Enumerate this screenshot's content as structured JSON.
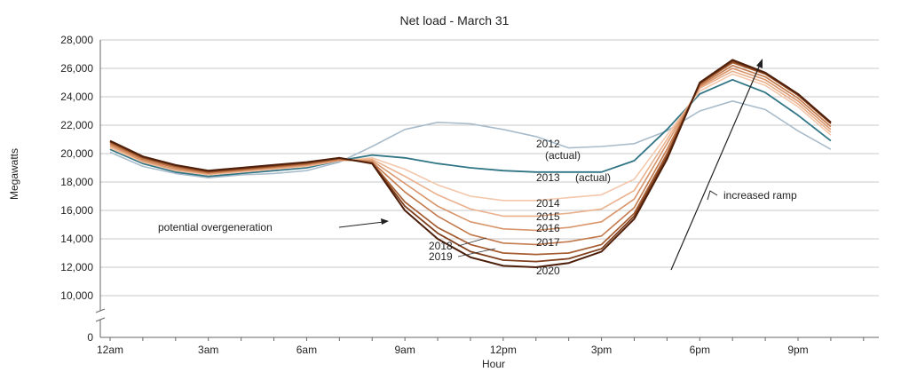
{
  "chart_data": {
    "type": "line",
    "title": "Net load - March 31",
    "xlabel": "Hour",
    "ylabel": "Megawatts",
    "ylim": [
      0,
      28000
    ],
    "y_axis_break": true,
    "y_ticks": [
      0,
      10000,
      12000,
      14000,
      16000,
      18000,
      20000,
      22000,
      24000,
      26000,
      28000
    ],
    "y_tick_labels": [
      "0",
      "10,000",
      "12,000",
      "14,000",
      "16,000",
      "18,000",
      "20,000",
      "22,000",
      "24,000",
      "26,000",
      "28,000"
    ],
    "x_ticks": [
      0,
      3,
      6,
      9,
      12,
      15,
      18,
      21
    ],
    "x_tick_labels": [
      "12am",
      "3am",
      "6am",
      "9am",
      "12pm",
      "3pm",
      "6pm",
      "9pm"
    ],
    "x": [
      0,
      1,
      2,
      3,
      4,
      5,
      6,
      7,
      8,
      9,
      10,
      11,
      12,
      13,
      14,
      15,
      16,
      17,
      18,
      19,
      20,
      21,
      22,
      23
    ],
    "grid": true,
    "series": [
      {
        "name": "2012",
        "sublabel": "(actual)",
        "color": "#a9bccb",
        "width": 1.6,
        "values": [
          20100,
          19100,
          18600,
          18300,
          18500,
          18600,
          18800,
          19400,
          20500,
          21700,
          22200,
          22100,
          21700,
          21200,
          20400,
          20500,
          20700,
          21600,
          23000,
          23700,
          23100,
          21600,
          20300,
          null
        ]
      },
      {
        "name": "2013",
        "sublabel": "(actual)",
        "color": "#2f7585",
        "width": 1.8,
        "values": [
          20300,
          19300,
          18700,
          18400,
          18600,
          18800,
          19000,
          19500,
          19900,
          19700,
          19300,
          19000,
          18800,
          18700,
          18700,
          18700,
          19500,
          21700,
          24200,
          25200,
          24300,
          22700,
          20900,
          null
        ]
      },
      {
        "name": "2014",
        "color": "#f4c7ab",
        "width": 1.6,
        "values": [
          20400,
          19400,
          18800,
          18500,
          18700,
          18900,
          19100,
          19500,
          19700,
          18900,
          17800,
          17000,
          16700,
          16700,
          16900,
          17100,
          18200,
          21300,
          24400,
          25600,
          24800,
          23300,
          21300,
          null
        ]
      },
      {
        "name": "2015",
        "color": "#eab08c",
        "width": 1.6,
        "values": [
          20500,
          19450,
          18850,
          18550,
          18750,
          18950,
          19150,
          19500,
          19600,
          18400,
          17100,
          16100,
          15600,
          15600,
          15800,
          16100,
          17400,
          21000,
          24600,
          25800,
          25000,
          23500,
          21500,
          null
        ]
      },
      {
        "name": "2016",
        "color": "#d9956b",
        "width": 1.6,
        "values": [
          20600,
          19500,
          18900,
          18600,
          18800,
          19000,
          19200,
          19550,
          19500,
          17900,
          16300,
          15200,
          14700,
          14600,
          14800,
          15200,
          16800,
          20700,
          24700,
          26000,
          25200,
          23700,
          21700,
          null
        ]
      },
      {
        "name": "2017",
        "color": "#c47a4c",
        "width": 1.6,
        "values": [
          20700,
          19600,
          19000,
          18650,
          18850,
          19050,
          19250,
          19600,
          19400,
          17300,
          15600,
          14300,
          13700,
          13600,
          13800,
          14200,
          16200,
          20300,
          24800,
          26200,
          25400,
          23900,
          21900,
          null
        ]
      },
      {
        "name": "2018",
        "color": "#a65d32",
        "width": 1.7,
        "values": [
          20800,
          19700,
          19100,
          18700,
          18900,
          19100,
          19300,
          19650,
          19350,
          16600,
          14800,
          13600,
          13000,
          12900,
          13000,
          13600,
          15800,
          20000,
          24900,
          26400,
          25600,
          24100,
          22100,
          null
        ]
      },
      {
        "name": "2019",
        "color": "#7f3e1c",
        "width": 1.8,
        "values": [
          20850,
          19750,
          19150,
          18750,
          18950,
          19150,
          19350,
          19700,
          19300,
          16300,
          14400,
          13100,
          12500,
          12400,
          12600,
          13300,
          15600,
          19800,
          24950,
          26500,
          25650,
          24150,
          22150,
          null
        ]
      },
      {
        "name": "2020",
        "color": "#4e1f0a",
        "width": 2.0,
        "values": [
          20900,
          19800,
          19200,
          18800,
          19000,
          19200,
          19400,
          19700,
          19300,
          16000,
          14000,
          12700,
          12100,
          12000,
          12300,
          13100,
          15400,
          19600,
          25000,
          26600,
          25700,
          24200,
          22200,
          null
        ]
      }
    ],
    "annotations": [
      {
        "text": "potential overgeneration"
      },
      {
        "text": "increased ramp"
      }
    ]
  }
}
